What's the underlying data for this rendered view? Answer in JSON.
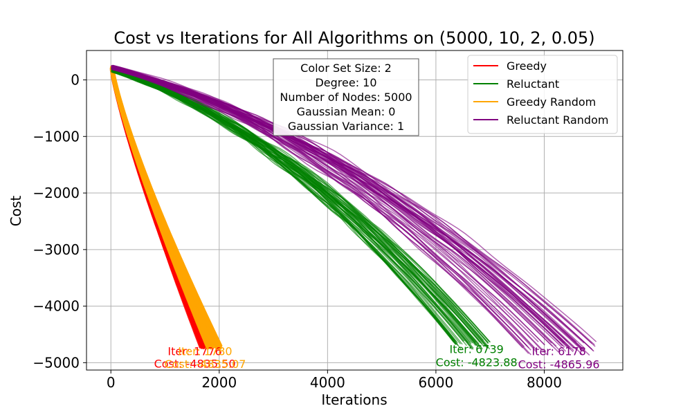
{
  "chart_data": {
    "type": "line",
    "title": "Cost vs Iterations for All Algorithms on (5000, 10, 2, 0.05)",
    "xlabel": "Iterations",
    "ylabel": "Cost",
    "xlim": [
      -450,
      9450
    ],
    "ylim": [
      -5130,
      520
    ],
    "xticks": [
      0,
      2000,
      4000,
      6000,
      8000
    ],
    "xtick_labels": [
      "0",
      "2000",
      "4000",
      "6000",
      "8000"
    ],
    "yticks": [
      0,
      -1000,
      -2000,
      -3000,
      -4000,
      -5000
    ],
    "ytick_labels": [
      "0",
      "−1000",
      "−2000",
      "−3000",
      "−4000",
      "−5000"
    ],
    "grid": true,
    "legend_position": "top-right",
    "info_box": [
      "Color Set Size: 2",
      "Degree: 10",
      "Number of Nodes: 5000",
      "Gaussian Mean: 0",
      "Gaussian Variance: 1"
    ],
    "series": [
      {
        "name": "Greedy",
        "color": "#ff0000",
        "runs": 50,
        "x_end_range": [
          1650,
          1860
        ],
        "y_start": 200,
        "y_end_range": [
          -4760,
          -4700
        ],
        "shape": "fast-convex",
        "annotation": {
          "iter_text": "Iter: 1776",
          "cost_text": "Cost: -4835.50",
          "x": 1550,
          "y_iter": -4865,
          "y_cost": -5090
        }
      },
      {
        "name": "Reluctant",
        "color": "#008000",
        "runs": 50,
        "x_end_range": [
          6300,
          7050
        ],
        "y_start": 180,
        "y_end_range": [
          -4770,
          -4600
        ],
        "shape": "slow-concave",
        "annotation": {
          "iter_text": "Iter: 6739",
          "cost_text": "Cost: -4823.88",
          "x": 6750,
          "y_iter": -4830,
          "y_cost": -5060
        }
      },
      {
        "name": "Greedy Random",
        "color": "#ffa500",
        "runs": 50,
        "x_end_range": [
          1780,
          2050
        ],
        "y_start": 210,
        "y_end_range": [
          -4770,
          -4680
        ],
        "shape": "fast-convex",
        "annotation": {
          "iter_text": "Iter: 1780",
          "cost_text": "Cost: -4835.07",
          "x": 1740,
          "y_iter": -4870,
          "y_cost": -5095
        }
      },
      {
        "name": "Reluctant Random",
        "color": "#800080",
        "runs": 50,
        "x_end_range": [
          7600,
          9000
        ],
        "y_start": 220,
        "y_end_range": [
          -4870,
          -4620
        ],
        "shape": "slow-concave",
        "annotation": {
          "iter_text": "Iter: 6178",
          "cost_text": "Cost: -4865.96",
          "x": 8270,
          "y_iter": -4870,
          "y_cost": -5100
        }
      }
    ]
  }
}
